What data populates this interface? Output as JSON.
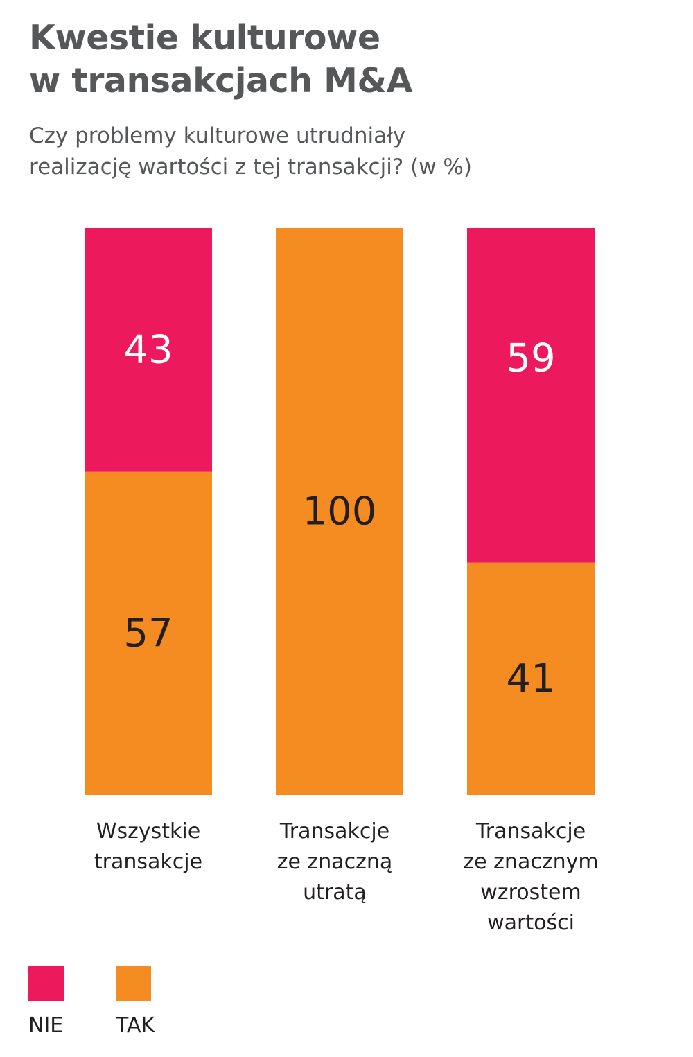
{
  "title_line1": "Kwestie kulturowe",
  "title_line2": "w transakcjach M&A",
  "subtitle_line1": "Czy problemy kulturowe utrudniały",
  "subtitle_line2": "realizację wartości z tej transakcji? (w %)",
  "colors": {
    "nie": "#ec1a5c",
    "tak": "#f48c22",
    "label_on_nie": "#ffffff",
    "label_on_tak": "#231f20"
  },
  "chart_data": {
    "type": "bar",
    "stacked": true,
    "percent": true,
    "categories": [
      [
        "Wszystkie",
        "transakcje"
      ],
      [
        "Transakcje",
        "ze znaczną",
        "utratą"
      ],
      [
        "Transakcje",
        "ze znacznym",
        "wzrostem",
        "wartości"
      ]
    ],
    "series": [
      {
        "name": "TAK",
        "values": [
          57,
          100,
          41
        ]
      },
      {
        "name": "NIE",
        "values": [
          43,
          0,
          59
        ]
      }
    ],
    "ylim": [
      0,
      100
    ],
    "grid": false,
    "legend_placement": "bottom-left"
  },
  "legend": [
    {
      "label": "NIE",
      "color": "#ec1a5c"
    },
    {
      "label": "TAK",
      "color": "#f48c22"
    }
  ]
}
